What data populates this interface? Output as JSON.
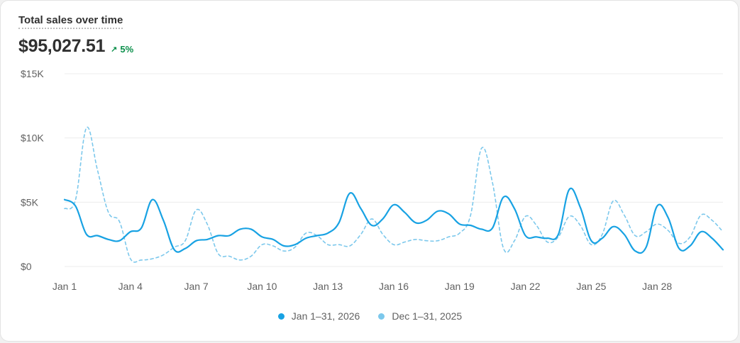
{
  "card": {
    "title": "Total sales over time",
    "total": "$95,027.51",
    "change": "5%"
  },
  "colors": {
    "current": "#18a2e3",
    "previous": "#7cc8ec",
    "positive": "#0a8f4a",
    "grid": "#ececec"
  },
  "chart_data": {
    "type": "line",
    "title": "Total sales over time",
    "ylim": [
      0,
      15000
    ],
    "y_ticks": [
      0,
      5000,
      10000,
      15000
    ],
    "y_tick_labels": [
      "$0",
      "$5K",
      "$10K",
      "$15K"
    ],
    "x_tick_labels": [
      "Jan 1",
      "Jan 4",
      "Jan 7",
      "Jan 10",
      "Jan 13",
      "Jan 16",
      "Jan 19",
      "Jan 22",
      "Jan 25",
      "Jan 28"
    ],
    "x_tick_days": [
      1,
      4,
      7,
      10,
      13,
      16,
      19,
      22,
      25,
      28
    ],
    "grid": true,
    "legend_position": "bottom",
    "series": [
      {
        "name": "Jan 1–31, 2026",
        "style": "solid",
        "x": [
          1,
          1.5,
          2,
          2.5,
          3,
          3.5,
          4,
          4.5,
          5,
          5.5,
          6,
          6.5,
          7,
          7.5,
          8,
          8.5,
          9,
          9.5,
          10,
          10.5,
          11,
          11.5,
          12,
          12.5,
          13,
          13.5,
          14,
          14.5,
          15,
          15.5,
          16,
          16.5,
          17,
          17.5,
          18,
          18.5,
          19,
          19.5,
          20,
          20.5,
          21,
          21.5,
          22,
          22.5,
          23,
          23.5,
          24,
          24.5,
          25,
          25.5,
          26,
          26.5,
          27,
          27.5,
          28,
          28.5,
          29,
          29.5,
          30,
          30.5,
          31
        ],
        "values": [
          5200,
          4700,
          2500,
          2400,
          2100,
          2000,
          2700,
          3000,
          5200,
          3600,
          1300,
          1400,
          2000,
          2100,
          2400,
          2400,
          2900,
          2900,
          2300,
          2100,
          1600,
          1700,
          2200,
          2400,
          2600,
          3400,
          5700,
          4500,
          3200,
          3700,
          4800,
          4200,
          3400,
          3600,
          4300,
          4100,
          3300,
          3200,
          2900,
          3000,
          5400,
          4500,
          2400,
          2300,
          2200,
          2500,
          6000,
          4600,
          2000,
          2200,
          3100,
          2500,
          1200,
          1500,
          4700,
          3800,
          1400,
          1600,
          2700,
          2200,
          1300
        ]
      },
      {
        "name": "Dec 1–31, 2025",
        "style": "dashed",
        "x": [
          1,
          1.5,
          2,
          2.5,
          3,
          3.5,
          4,
          4.5,
          5,
          5.5,
          6,
          6.5,
          7,
          7.5,
          8,
          8.5,
          9,
          9.5,
          10,
          10.5,
          11,
          11.5,
          12,
          12.5,
          13,
          13.5,
          14,
          14.5,
          15,
          15.5,
          16,
          16.5,
          17,
          17.5,
          18,
          18.5,
          19,
          19.5,
          20,
          20.5,
          21,
          21.5,
          22,
          22.5,
          23,
          23.5,
          24,
          24.5,
          25,
          25.5,
          26,
          26.5,
          27,
          27.5,
          28,
          28.5,
          29,
          29.5,
          30,
          30.5,
          31
        ],
        "values": [
          4500,
          5200,
          10800,
          7500,
          4200,
          3500,
          600,
          500,
          600,
          900,
          1500,
          2000,
          4400,
          3300,
          1000,
          800,
          500,
          800,
          1700,
          1600,
          1200,
          1500,
          2600,
          2400,
          1700,
          1700,
          1600,
          2500,
          3700,
          2500,
          1700,
          1900,
          2100,
          2000,
          2000,
          2300,
          2600,
          4000,
          9200,
          6500,
          1400,
          2000,
          3900,
          3200,
          1900,
          2300,
          3900,
          3200,
          1700,
          2500,
          5100,
          4000,
          2400,
          2700,
          3300,
          2800,
          1800,
          2300,
          4000,
          3600,
          2700
        ]
      }
    ]
  }
}
